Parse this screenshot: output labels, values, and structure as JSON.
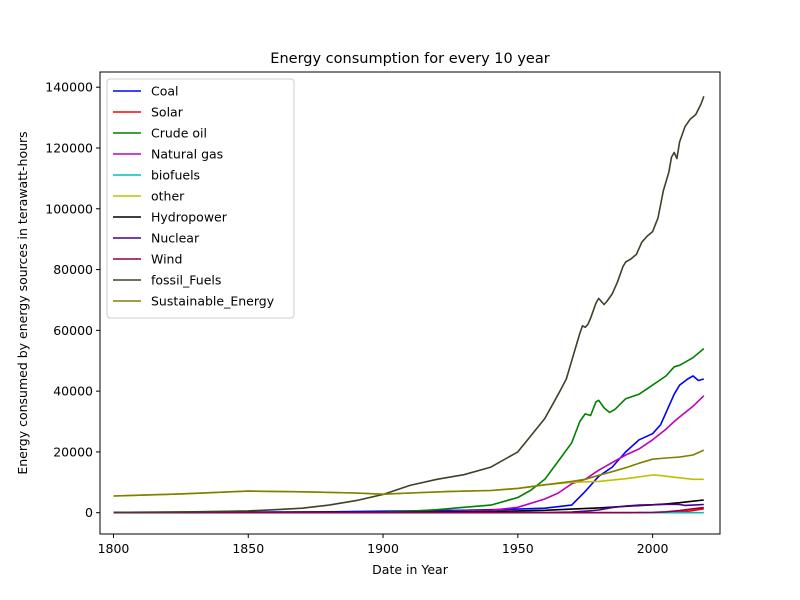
{
  "chart_data": {
    "type": "line",
    "title": "Energy consumption for every 10 year",
    "xlabel": "Date in Year",
    "ylabel": "Energy consumed by energy sources in terawatt-hours",
    "xlim": [
      1795,
      2025
    ],
    "ylim": [
      -7000,
      145000
    ],
    "x_ticks": [
      1800,
      1850,
      1900,
      1950,
      2000
    ],
    "y_ticks": [
      0,
      20000,
      40000,
      60000,
      80000,
      100000,
      120000,
      140000
    ],
    "grid": false,
    "legend_position": "upper-left",
    "series": [
      {
        "name": "Coal",
        "color": "#0000ff",
        "points": [
          [
            1800,
            100
          ],
          [
            1850,
            200
          ],
          [
            1880,
            300
          ],
          [
            1900,
            500
          ],
          [
            1910,
            600
          ],
          [
            1920,
            700
          ],
          [
            1930,
            800
          ],
          [
            1940,
            1000
          ],
          [
            1950,
            1200
          ],
          [
            1960,
            1500
          ],
          [
            1970,
            2500
          ],
          [
            1975,
            7000
          ],
          [
            1980,
            12000
          ],
          [
            1985,
            15000
          ],
          [
            1990,
            20000
          ],
          [
            1995,
            24000
          ],
          [
            2000,
            26000
          ],
          [
            2003,
            29000
          ],
          [
            2005,
            33000
          ],
          [
            2008,
            39000
          ],
          [
            2010,
            42000
          ],
          [
            2013,
            44000
          ],
          [
            2015,
            45000
          ],
          [
            2017,
            43500
          ],
          [
            2019,
            44000
          ]
        ]
      },
      {
        "name": "Solar",
        "color": "#ff0000",
        "points": [
          [
            1800,
            0
          ],
          [
            1950,
            0
          ],
          [
            2000,
            0
          ],
          [
            2005,
            50
          ],
          [
            2010,
            200
          ],
          [
            2014,
            600
          ],
          [
            2017,
            1000
          ],
          [
            2019,
            1300
          ]
        ]
      },
      {
        "name": "Crude oil",
        "color": "#008000",
        "points": [
          [
            1800,
            0
          ],
          [
            1880,
            100
          ],
          [
            1900,
            200
          ],
          [
            1910,
            500
          ],
          [
            1920,
            1000
          ],
          [
            1930,
            1800
          ],
          [
            1940,
            2500
          ],
          [
            1950,
            5000
          ],
          [
            1955,
            7500
          ],
          [
            1960,
            11000
          ],
          [
            1965,
            17000
          ],
          [
            1970,
            23000
          ],
          [
            1973,
            30000
          ],
          [
            1975,
            32500
          ],
          [
            1977,
            32000
          ],
          [
            1979,
            36500
          ],
          [
            1980,
            37000
          ],
          [
            1982,
            34500
          ],
          [
            1984,
            33000
          ],
          [
            1986,
            34000
          ],
          [
            1990,
            37500
          ],
          [
            1995,
            39000
          ],
          [
            2000,
            42000
          ],
          [
            2005,
            45000
          ],
          [
            2008,
            48000
          ],
          [
            2010,
            48500
          ],
          [
            2015,
            51000
          ],
          [
            2019,
            54000
          ]
        ]
      },
      {
        "name": "Natural gas",
        "color": "#bf00bf",
        "points": [
          [
            1800,
            0
          ],
          [
            1900,
            100
          ],
          [
            1920,
            300
          ],
          [
            1940,
            800
          ],
          [
            1950,
            1800
          ],
          [
            1960,
            4500
          ],
          [
            1965,
            6500
          ],
          [
            1970,
            9500
          ],
          [
            1975,
            11000
          ],
          [
            1980,
            14000
          ],
          [
            1985,
            16500
          ],
          [
            1990,
            19000
          ],
          [
            1995,
            21000
          ],
          [
            2000,
            24000
          ],
          [
            2005,
            27500
          ],
          [
            2008,
            30000
          ],
          [
            2010,
            31500
          ],
          [
            2015,
            35000
          ],
          [
            2019,
            38500
          ]
        ]
      },
      {
        "name": "biofuels",
        "color": "#00bfbf",
        "points": [
          [
            1800,
            0
          ],
          [
            1950,
            0
          ],
          [
            1980,
            0
          ],
          [
            1990,
            0
          ],
          [
            2000,
            0
          ],
          [
            2005,
            0
          ],
          [
            2010,
            0
          ],
          [
            2015,
            0
          ],
          [
            2019,
            0
          ]
        ]
      },
      {
        "name": "other",
        "color": "#bfbf00",
        "points": [
          [
            1800,
            5500
          ],
          [
            1825,
            6200
          ],
          [
            1850,
            7100
          ],
          [
            1870,
            6900
          ],
          [
            1890,
            6500
          ],
          [
            1900,
            6100
          ],
          [
            1910,
            6500
          ],
          [
            1925,
            7000
          ],
          [
            1940,
            7300
          ],
          [
            1950,
            8000
          ],
          [
            1960,
            9200
          ],
          [
            1970,
            10000
          ],
          [
            1980,
            10300
          ],
          [
            1990,
            11200
          ],
          [
            2000,
            12400
          ],
          [
            2003,
            12200
          ],
          [
            2010,
            11500
          ],
          [
            2015,
            11000
          ],
          [
            2019,
            11000
          ]
        ]
      },
      {
        "name": "Hydropower",
        "color": "#000000",
        "points": [
          [
            1800,
            0
          ],
          [
            1900,
            100
          ],
          [
            1920,
            200
          ],
          [
            1940,
            400
          ],
          [
            1950,
            600
          ],
          [
            1960,
            800
          ],
          [
            1970,
            1200
          ],
          [
            1980,
            1600
          ],
          [
            1990,
            2100
          ],
          [
            2000,
            2600
          ],
          [
            2005,
            2900
          ],
          [
            2010,
            3300
          ],
          [
            2015,
            3800
          ],
          [
            2019,
            4200
          ]
        ]
      },
      {
        "name": "Nuclear",
        "color": "#4b0082",
        "points": [
          [
            1800,
            0
          ],
          [
            1960,
            0
          ],
          [
            1970,
            200
          ],
          [
            1975,
            500
          ],
          [
            1980,
            900
          ],
          [
            1985,
            1700
          ],
          [
            1990,
            2200
          ],
          [
            1995,
            2500
          ],
          [
            2000,
            2600
          ],
          [
            2006,
            2800
          ],
          [
            2010,
            2700
          ],
          [
            2012,
            2400
          ],
          [
            2015,
            2500
          ],
          [
            2019,
            2700
          ]
        ]
      },
      {
        "name": "Wind",
        "color": "#8b0050",
        "points": [
          [
            1800,
            0
          ],
          [
            1990,
            0
          ],
          [
            1995,
            50
          ],
          [
            2000,
            100
          ],
          [
            2005,
            300
          ],
          [
            2010,
            700
          ],
          [
            2015,
            1300
          ],
          [
            2019,
            1700
          ]
        ]
      },
      {
        "name": "fossil_Fuels",
        "color": "#40402a",
        "points": [
          [
            1800,
            100
          ],
          [
            1830,
            300
          ],
          [
            1850,
            600
          ],
          [
            1860,
            1000
          ],
          [
            1870,
            1500
          ],
          [
            1880,
            2500
          ],
          [
            1890,
            4000
          ],
          [
            1900,
            6000
          ],
          [
            1910,
            9000
          ],
          [
            1920,
            11000
          ],
          [
            1930,
            12500
          ],
          [
            1940,
            15000
          ],
          [
            1950,
            20000
          ],
          [
            1955,
            25500
          ],
          [
            1960,
            31000
          ],
          [
            1965,
            39000
          ],
          [
            1968,
            44000
          ],
          [
            1970,
            50000
          ],
          [
            1972,
            56000
          ],
          [
            1973,
            59000
          ],
          [
            1974,
            61500
          ],
          [
            1975,
            61000
          ],
          [
            1976,
            62000
          ],
          [
            1977,
            64000
          ],
          [
            1979,
            69000
          ],
          [
            1980,
            70500
          ],
          [
            1981,
            69500
          ],
          [
            1982,
            68500
          ],
          [
            1983,
            69500
          ],
          [
            1985,
            72000
          ],
          [
            1987,
            76000
          ],
          [
            1989,
            81000
          ],
          [
            1990,
            82500
          ],
          [
            1992,
            83500
          ],
          [
            1994,
            85000
          ],
          [
            1996,
            89000
          ],
          [
            1998,
            91000
          ],
          [
            2000,
            92500
          ],
          [
            2002,
            97000
          ],
          [
            2004,
            106000
          ],
          [
            2006,
            112000
          ],
          [
            2007,
            117000
          ],
          [
            2008,
            118500
          ],
          [
            2009,
            116500
          ],
          [
            2010,
            122000
          ],
          [
            2012,
            127000
          ],
          [
            2014,
            129500
          ],
          [
            2016,
            131000
          ],
          [
            2018,
            134500
          ],
          [
            2019,
            137000
          ]
        ]
      },
      {
        "name": "Sustainable_Energy",
        "color": "#808000",
        "points": [
          [
            1800,
            5500
          ],
          [
            1825,
            6200
          ],
          [
            1850,
            7100
          ],
          [
            1870,
            6900
          ],
          [
            1890,
            6500
          ],
          [
            1900,
            6100
          ],
          [
            1910,
            6500
          ],
          [
            1925,
            7000
          ],
          [
            1940,
            7300
          ],
          [
            1950,
            8000
          ],
          [
            1960,
            9200
          ],
          [
            1970,
            10300
          ],
          [
            1975,
            11000
          ],
          [
            1980,
            12300
          ],
          [
            1985,
            13500
          ],
          [
            1990,
            14800
          ],
          [
            1995,
            16300
          ],
          [
            2000,
            17600
          ],
          [
            2005,
            18000
          ],
          [
            2010,
            18300
          ],
          [
            2015,
            19000
          ],
          [
            2019,
            20600
          ]
        ]
      }
    ]
  }
}
